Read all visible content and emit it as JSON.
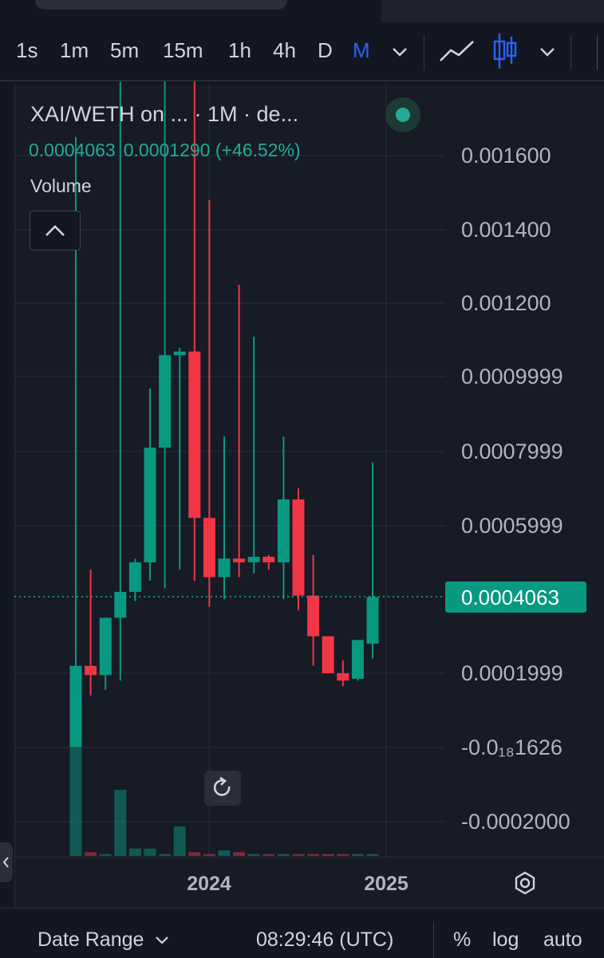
{
  "toolbar": {
    "timeframes": [
      "1s",
      "1m",
      "5m",
      "15m",
      "1h",
      "4h",
      "D",
      "M"
    ],
    "active_timeframe": "M",
    "icons": [
      "chevron-down-icon",
      "line-chart-icon",
      "candlestick-icon",
      "chevron-down-icon"
    ]
  },
  "legend": {
    "title": "XAI/WETH on ...  · 1M · de...",
    "value_close": "0.0004063",
    "value_change": "0.0001290 (+46.52%)",
    "volume_label": "Volume"
  },
  "price_axis": {
    "labels": [
      "0.001600",
      "0.001400",
      "0.001200",
      "0.0009999",
      "0.0007999",
      "0.0005999",
      "0.0001999",
      "-0.0₁₈1626",
      "-0.0002000"
    ],
    "current_price": "0.0004063"
  },
  "time_axis": {
    "labels": [
      "2024",
      "2025"
    ]
  },
  "footer": {
    "date_range": "Date Range",
    "clock": "08:29:46 (UTC)",
    "percent": "%",
    "log": "log",
    "auto": "auto"
  },
  "colors": {
    "up": "#089981",
    "down": "#f23645",
    "accent": "#2962ff",
    "background": "#171b26"
  },
  "chart_data": {
    "type": "candlestick",
    "interval": "1M",
    "y_range": [
      -0.00023,
      0.00183
    ],
    "x_ticks": [
      "2024",
      "2025"
    ],
    "candles": [
      {
        "o": 0.0,
        "h": 0.00165,
        "l": 0.0,
        "c": 0.00022
      },
      {
        "o": 0.00022,
        "h": 0.00048,
        "l": 0.00014,
        "c": 0.000195
      },
      {
        "o": 0.000195,
        "h": 0.000335,
        "l": 0.000155,
        "c": 0.00035
      },
      {
        "o": 0.00035,
        "h": 0.0018,
        "l": 0.00018,
        "c": 0.00042
      },
      {
        "o": 0.00042,
        "h": 0.00051,
        "l": 0.000395,
        "c": 0.0005
      },
      {
        "o": 0.0005,
        "h": 0.00097,
        "l": 0.00045,
        "c": 0.00081
      },
      {
        "o": 0.00081,
        "h": 0.0018,
        "l": 0.00043,
        "c": 0.00106
      },
      {
        "o": 0.00106,
        "h": 0.00108,
        "l": 0.00048,
        "c": 0.00107
      },
      {
        "o": 0.00107,
        "h": 0.0018,
        "l": 0.00045,
        "c": 0.00062
      },
      {
        "o": 0.00062,
        "h": 0.00148,
        "l": 0.00038,
        "c": 0.00046
      },
      {
        "o": 0.00046,
        "h": 0.00084,
        "l": 0.0004,
        "c": 0.00051
      },
      {
        "o": 0.00051,
        "h": 0.00125,
        "l": 0.00046,
        "c": 0.0005
      },
      {
        "o": 0.0005,
        "h": 0.00111,
        "l": 0.00047,
        "c": 0.000515
      },
      {
        "o": 0.000515,
        "h": 0.00052,
        "l": 0.00048,
        "c": 0.0005
      },
      {
        "o": 0.0005,
        "h": 0.00084,
        "l": 0.0004,
        "c": 0.00067
      },
      {
        "o": 0.00067,
        "h": 0.0007,
        "l": 0.00037,
        "c": 0.00041
      },
      {
        "o": 0.00041,
        "h": 0.00052,
        "l": 0.00022,
        "c": 0.0003
      },
      {
        "o": 0.0003,
        "h": 0.0003,
        "l": 0.0002,
        "c": 0.0002
      },
      {
        "o": 0.0002,
        "h": 0.000235,
        "l": 0.000165,
        "c": 0.00018
      },
      {
        "o": 0.000185,
        "h": 0.00029,
        "l": 0.00018,
        "c": 0.00029
      },
      {
        "o": 0.00028,
        "h": 0.00077,
        "l": 0.00024,
        "c": 0.000406
      }
    ],
    "volume_relative": [
      0.59,
      0.02,
      0.01,
      0.36,
      0.04,
      0.04,
      0.01,
      0.16,
      0.02,
      0.01,
      0.03,
      0.02,
      0.01,
      0.01,
      0.01,
      0.01,
      0.01,
      0.01,
      0.01,
      0.01,
      0.01
    ]
  }
}
